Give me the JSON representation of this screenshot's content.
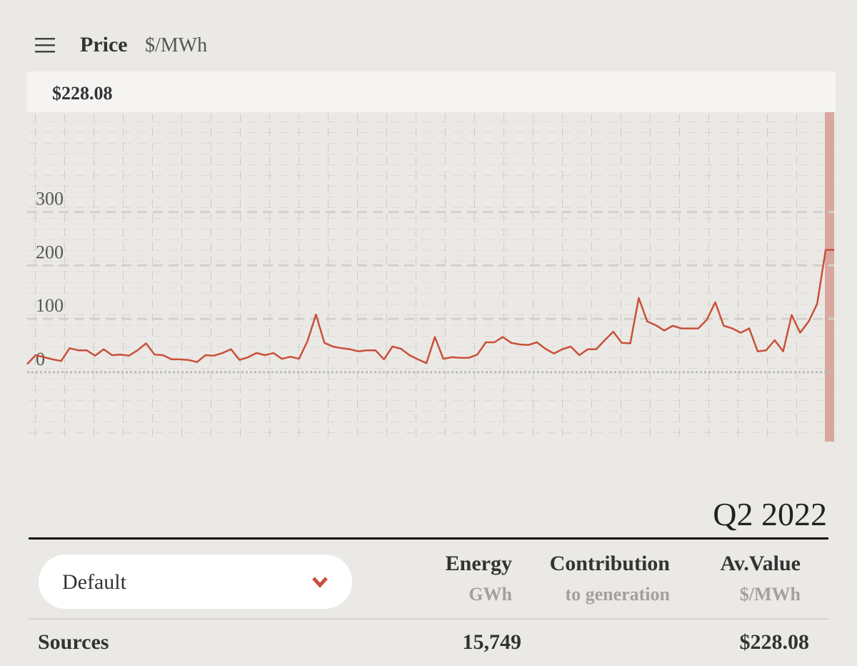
{
  "header": {
    "title": "Price",
    "unit": "$/MWh"
  },
  "chart_data": {
    "type": "line",
    "hover_value": "$228.08",
    "color": "#c9503a",
    "ylim": [
      -130,
      487
    ],
    "yticks": [
      0,
      100,
      200,
      300
    ],
    "values": [
      15,
      32,
      28,
      24,
      21,
      45,
      41,
      41,
      31,
      43,
      32,
      33,
      31,
      41,
      54,
      33,
      32,
      24,
      24,
      23,
      19,
      32,
      31,
      36,
      43,
      23,
      28,
      36,
      32,
      36,
      25,
      29,
      25,
      58,
      108,
      55,
      48,
      45,
      43,
      39,
      41,
      41,
      24,
      48,
      44,
      32,
      24,
      17,
      66,
      25,
      28,
      27,
      27,
      33,
      56,
      56,
      66,
      55,
      52,
      51,
      56,
      44,
      35,
      43,
      48,
      32,
      43,
      43,
      60,
      76,
      55,
      54,
      139,
      95,
      88,
      78,
      87,
      82,
      82,
      82,
      98,
      131,
      87,
      82,
      74,
      82,
      39,
      41,
      60,
      39,
      107,
      74,
      95,
      128,
      229,
      229
    ]
  },
  "period": "Q2 2022",
  "table": {
    "selector": "Default",
    "columns": [
      {
        "title": "Energy",
        "unit": "GWh"
      },
      {
        "title": "Contribution",
        "unit": "to generation"
      },
      {
        "title": "Av.Value",
        "unit": "$/MWh"
      }
    ],
    "rows": [
      [
        "Sources",
        "15,749",
        "$228.08"
      ]
    ]
  }
}
